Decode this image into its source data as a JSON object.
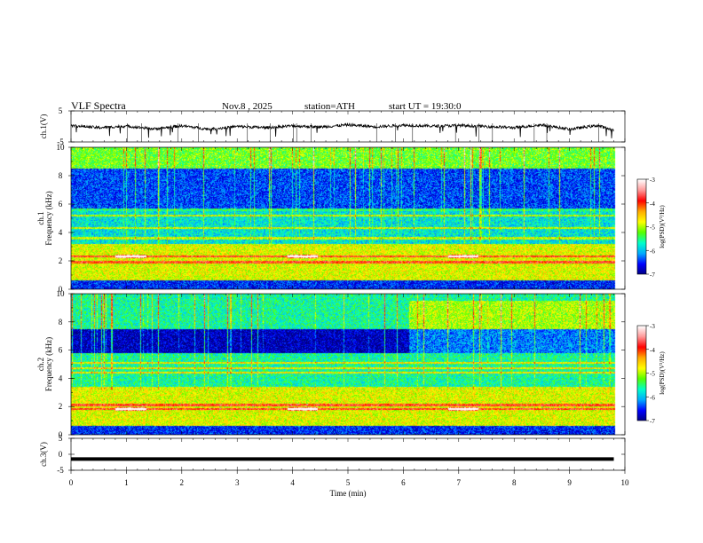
{
  "header": {
    "title": "VLF Spectra",
    "date": "Nov.8 , 2025",
    "station": "station=ATH",
    "start": "start UT = 19:30:0"
  },
  "colors": {
    "colormap": [
      "#000080",
      "#0000ff",
      "#00aaff",
      "#00ffcc",
      "#55ff00",
      "#ffff00",
      "#ffaa00",
      "#ff0000",
      "#ff9999",
      "#ffffff"
    ],
    "waveform": "#000000"
  },
  "chart_data": [
    {
      "type": "line",
      "panel": "ch1-waveform",
      "ylabel": "ch.1(V)",
      "ylim": [
        -5,
        5
      ],
      "yticks": [
        "5",
        "-5"
      ],
      "xlim": [
        0,
        10
      ],
      "x": [
        0,
        0.5,
        1,
        1.5,
        2,
        2.5,
        3,
        3.5,
        4,
        4.5,
        5,
        5.5,
        6,
        6.5,
        7,
        7.5,
        8,
        8.5,
        9,
        9.5,
        9.8
      ],
      "y": [
        0.3,
        -0.4,
        0.1,
        -0.8,
        0.2,
        -0.9,
        0.0,
        -0.4,
        0.2,
        -0.2,
        0.5,
        -0.1,
        0.4,
        0.1,
        0.3,
        0.0,
        -0.4,
        0.5,
        -0.9,
        0.3,
        -1.2
      ]
    },
    {
      "type": "heatmap",
      "panel": "ch1-spectrogram",
      "ylabel": "ch.1 Frequency (kHz)",
      "ylim": [
        0,
        10
      ],
      "yticks": [
        "0",
        "2",
        "4",
        "6",
        "8",
        "10"
      ],
      "xlim": [
        0,
        10
      ],
      "colorbar": {
        "label": "log(PSD)(V²/Hz)",
        "range": [
          -7,
          -3
        ],
        "ticks": [
          "-3",
          "-4",
          "-5",
          "-6",
          "-7"
        ]
      },
      "bands": [
        {
          "freq_range": [
            0,
            0.6
          ],
          "log_psd": -6.5
        },
        {
          "freq_range": [
            0.6,
            3.2
          ],
          "log_psd": -4.8
        },
        {
          "freq_range": [
            3.2,
            5.5
          ],
          "log_psd": -5.8
        },
        {
          "freq_range": [
            5.5,
            8.5
          ],
          "log_psd": -6.4
        },
        {
          "freq_range": [
            8.5,
            10
          ],
          "log_psd": -5.2
        }
      ],
      "lines_khz": [
        2.3,
        1.9,
        3.6,
        4.3,
        5.2,
        5.6
      ],
      "burst_times_min": [
        0.8,
        3.9,
        6.8
      ]
    },
    {
      "type": "heatmap",
      "panel": "ch2-spectrogram",
      "ylabel": "ch.2 Frequency (kHz)",
      "ylim": [
        0,
        10
      ],
      "yticks": [
        "0",
        "2",
        "4",
        "6",
        "8",
        "10"
      ],
      "xlim": [
        0,
        10
      ],
      "colorbar": {
        "label": "log(PSD)(V²/Hz)",
        "range": [
          -7,
          -3
        ],
        "ticks": [
          "-3",
          "-4",
          "-5",
          "-6",
          "-7"
        ]
      },
      "bands": [
        {
          "freq_range": [
            0,
            0.6
          ],
          "log_psd": -6.5
        },
        {
          "freq_range": [
            0.6,
            3.4
          ],
          "log_psd": -4.8
        },
        {
          "freq_range": [
            3.4,
            5.8
          ],
          "log_psd": -5.6
        },
        {
          "freq_range": [
            5.8,
            7.5
          ],
          "log_psd": -6.8
        },
        {
          "freq_range": [
            7.5,
            10
          ],
          "log_psd": -5.6
        }
      ],
      "lines_khz": [
        1.8,
        2.1,
        4.4,
        4.7,
        5.1
      ],
      "burst_times_min": [
        0.8,
        3.9,
        6.8
      ]
    },
    {
      "type": "line",
      "panel": "ch3-waveform",
      "ylabel": "ch.3(V)",
      "ylim": [
        -5,
        5
      ],
      "yticks": [
        "5",
        "0",
        "-5"
      ],
      "xlim": [
        0,
        10
      ],
      "x": [
        0,
        9.8
      ],
      "y": [
        -1.5,
        -1.5
      ]
    },
    {
      "type": "axis",
      "xlabel": "Time (min)",
      "xticks": [
        "0",
        "1",
        "2",
        "3",
        "4",
        "5",
        "6",
        "7",
        "8",
        "9",
        "10"
      ]
    }
  ]
}
